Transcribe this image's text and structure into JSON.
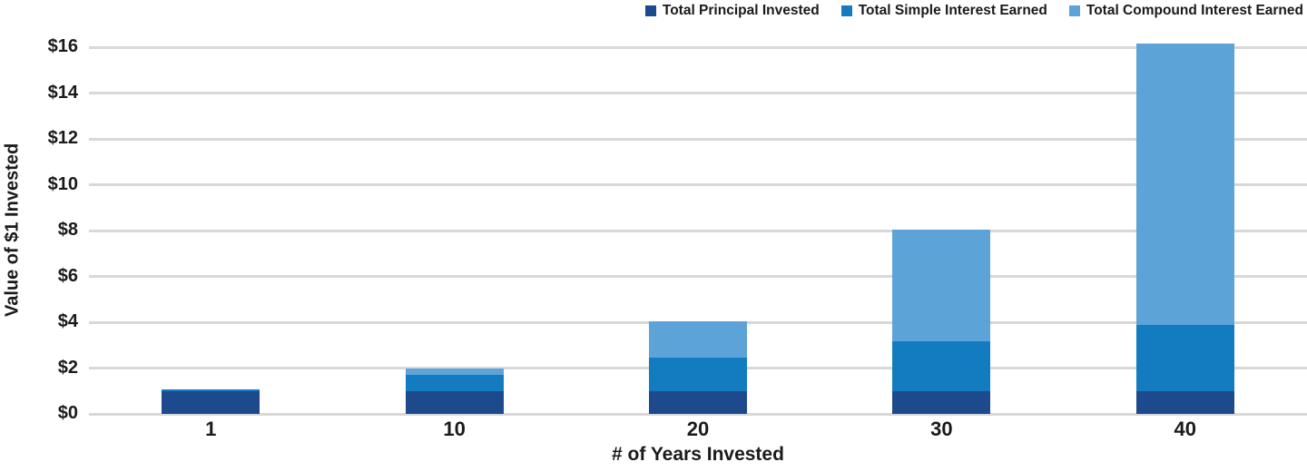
{
  "chart_data": {
    "type": "bar",
    "stacked": true,
    "title": "",
    "xlabel": "# of Years Invested",
    "ylabel": "Value of $1 Invested",
    "categories": [
      "1",
      "10",
      "20",
      "30",
      "40"
    ],
    "series": [
      {
        "name": "Total Principal Invested",
        "color": "#1C4A8C",
        "values": [
          1.0,
          1.0,
          1.0,
          1.0,
          1.0
        ]
      },
      {
        "name": "Total Simple Interest Earned",
        "color": "#137CC1",
        "values": [
          0.07,
          0.72,
          1.44,
          2.16,
          2.88
        ]
      },
      {
        "name": "Total Compound Interest Earned",
        "color": "#5CA3D8",
        "values": [
          0.0,
          0.28,
          1.58,
          4.89,
          12.26
        ]
      }
    ],
    "totals": [
      1.07,
      2.0,
      4.02,
      8.05,
      16.14
    ],
    "ylim": [
      0,
      16
    ],
    "yticks": [
      0,
      2,
      4,
      6,
      8,
      10,
      12,
      14,
      16
    ],
    "ytick_labels": [
      "$0",
      "$2",
      "$4",
      "$6",
      "$8",
      "$10",
      "$12",
      "$14",
      "$16"
    ],
    "grid": "horizontal",
    "gridline_color": "#D8D8D8",
    "text_color": "#1A1A1A",
    "background": "#FFFFFF",
    "legend_position": "top-right"
  }
}
